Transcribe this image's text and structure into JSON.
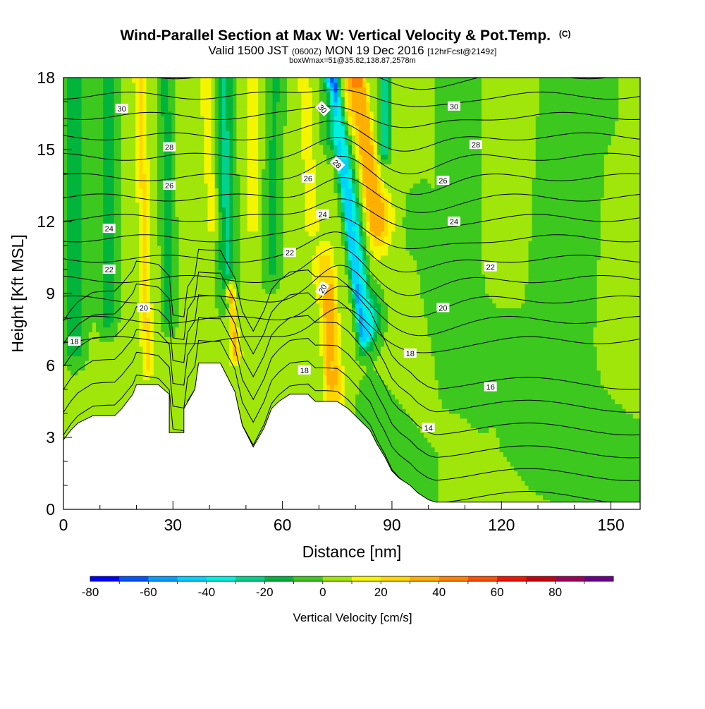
{
  "chart_data": {
    "type": "heatmap",
    "title": "Wind-Parallel Section at Max W: Vertical Velocity & Pot.Temp.",
    "title_mark": "(C)",
    "subtitle_parts": {
      "valid": "Valid 1500 JST",
      "utc": "(0600Z)",
      "date": "MON 19 Dec 2016",
      "fcst": "[12hrFcst@2149z]"
    },
    "info": "boxWmax=51@35.82,138.87,2578m",
    "xlabel": "Distance [nm]",
    "ylabel": "Height [Kft MSL]",
    "xlim": [
      0,
      158
    ],
    "ylim": [
      0,
      18
    ],
    "x_ticks": [
      0,
      30,
      60,
      90,
      120,
      150
    ],
    "x_tick_labels": [
      "0",
      "30",
      "60",
      "90",
      "120",
      "150"
    ],
    "y_ticks": [
      0,
      3,
      6,
      9,
      12,
      15,
      18
    ],
    "y_tick_labels": [
      "0",
      "3",
      "6",
      "9",
      "12",
      "15",
      "18"
    ],
    "colorbar": {
      "label": "Vertical Velocity [cm/s]",
      "levels": [
        -80,
        -70,
        -60,
        -50,
        -40,
        -30,
        -20,
        -10,
        0,
        10,
        20,
        30,
        40,
        50,
        60,
        70,
        80,
        90
      ],
      "colors": [
        "#0000ff",
        "#0055ff",
        "#00a0ff",
        "#00d2ff",
        "#00f0e0",
        "#00d28c",
        "#00b43c",
        "#3cc81e",
        "#a0e60a",
        "#f5f500",
        "#ffd700",
        "#ffaf00",
        "#ff8200",
        "#ff5000",
        "#f01400",
        "#c8000f",
        "#a0005a",
        "#6e008c"
      ],
      "tick_values": [
        -80,
        -60,
        -40,
        -20,
        0,
        20,
        40,
        60,
        80
      ],
      "tick_labels": [
        "-80",
        "-60",
        "-40",
        "-20",
        "0",
        "20",
        "40",
        "60",
        "80"
      ]
    },
    "field": {
      "background_value": 3,
      "features": [
        {
          "x0": 74,
          "y0": 18,
          "x1": 82,
          "y1": 7.5,
          "w": 2.2,
          "value": -75
        },
        {
          "x0": 75.5,
          "y0": 16,
          "x1": 83,
          "y1": 8,
          "w": 3.5,
          "value": -40
        },
        {
          "x0": 80.5,
          "y0": 18,
          "x1": 85,
          "y1": 12.5,
          "w": 2.5,
          "value": 68
        },
        {
          "x0": 81,
          "y0": 17,
          "x1": 86,
          "y1": 12,
          "w": 4,
          "value": 35
        },
        {
          "x0": 72.5,
          "y0": 9,
          "x1": 73.5,
          "y1": 5.5,
          "w": 1.8,
          "value": 58
        },
        {
          "x0": 72,
          "y0": 10,
          "x1": 74,
          "y1": 5,
          "w": 3.2,
          "value": 30
        },
        {
          "x0": 3,
          "y0": 18,
          "x1": 3,
          "y1": 7,
          "w": 3,
          "value": -20
        },
        {
          "x0": 12,
          "y0": 18,
          "x1": 12,
          "y1": 8,
          "w": 2.5,
          "value": -15
        },
        {
          "x0": 21,
          "y0": 18,
          "x1": 23,
          "y1": 6,
          "w": 1.8,
          "value": 22
        },
        {
          "x0": 28,
          "y0": 18,
          "x1": 29,
          "y1": 8,
          "w": 2,
          "value": -14
        },
        {
          "x0": 39,
          "y0": 18,
          "x1": 41,
          "y1": 12,
          "w": 2.5,
          "value": 16
        },
        {
          "x0": 44,
          "y0": 18,
          "x1": 45,
          "y1": 9,
          "w": 2.5,
          "value": -22
        },
        {
          "x0": 46,
          "y0": 9,
          "x1": 47,
          "y1": 6.5,
          "w": 1.6,
          "value": 32
        },
        {
          "x0": 52,
          "y0": 18,
          "x1": 52,
          "y1": 12,
          "w": 1.8,
          "value": 18
        },
        {
          "x0": 58,
          "y0": 18,
          "x1": 57,
          "y1": 10,
          "w": 2.5,
          "value": -12
        },
        {
          "x0": 66,
          "y0": 18,
          "x1": 68,
          "y1": 12,
          "w": 2.5,
          "value": 16
        },
        {
          "x0": 88,
          "y0": 18,
          "x1": 88,
          "y1": 15,
          "w": 1.5,
          "value": -28
        },
        {
          "x0": 98,
          "y0": 12,
          "x1": 105,
          "y1": 6,
          "w": 5,
          "value": -6
        },
        {
          "x0": 108,
          "y0": 18,
          "x1": 108,
          "y1": 10,
          "w": 6,
          "value": -6
        },
        {
          "x0": 140,
          "y0": 18,
          "x1": 135,
          "y1": 5,
          "w": 12,
          "value": -7
        },
        {
          "x0": 115,
          "y0": 6,
          "x1": 158,
          "y1": 1,
          "w": 8,
          "value": -6
        },
        {
          "x0": 85,
          "y0": 4,
          "x1": 100,
          "y1": 1,
          "w": 5,
          "value": -7
        },
        {
          "x0": 156,
          "y0": 18,
          "x1": 156,
          "y1": 10,
          "w": 2,
          "value": 8
        },
        {
          "x0": 118,
          "y0": 3,
          "x1": 120,
          "y1": 0.2,
          "w": 1,
          "value": 9
        },
        {
          "x0": 104,
          "y0": 3,
          "x1": 104,
          "y1": 0.5,
          "w": 1,
          "value": 9
        }
      ]
    },
    "terrain": [
      [
        0,
        2.9
      ],
      [
        2,
        3.3
      ],
      [
        4,
        3.6
      ],
      [
        8,
        3.9
      ],
      [
        14,
        3.9
      ],
      [
        16,
        4.2
      ],
      [
        19,
        4.8
      ],
      [
        20,
        5.2
      ],
      [
        26,
        5.2
      ],
      [
        29,
        4.8
      ],
      [
        29,
        3.2
      ],
      [
        33,
        3.2
      ],
      [
        33,
        4.2
      ],
      [
        36,
        5.0
      ],
      [
        37,
        6.1
      ],
      [
        43,
        6.1
      ],
      [
        45,
        5.5
      ],
      [
        47,
        4.9
      ],
      [
        49,
        3.5
      ],
      [
        52,
        2.6
      ],
      [
        55,
        3.4
      ],
      [
        57,
        4.2
      ],
      [
        59,
        4.5
      ],
      [
        62,
        4.8
      ],
      [
        67,
        4.8
      ],
      [
        69,
        4.5
      ],
      [
        75,
        4.5
      ],
      [
        78,
        4.2
      ],
      [
        80,
        3.9
      ],
      [
        82,
        3.6
      ],
      [
        84,
        3.3
      ],
      [
        86,
        2.7
      ],
      [
        88,
        2.2
      ],
      [
        90,
        1.6
      ],
      [
        92,
        1.3
      ],
      [
        95,
        1.0
      ],
      [
        97,
        0.7
      ],
      [
        100,
        0.4
      ],
      [
        102,
        0.3
      ],
      [
        158,
        0.3
      ]
    ],
    "theta_levels": [
      12,
      13,
      14,
      15,
      16,
      17,
      18,
      19,
      20,
      21,
      22,
      23,
      24,
      25,
      26,
      27,
      28,
      29,
      30,
      31
    ],
    "contour_labels": [
      {
        "text": "30",
        "x": 16,
        "y": 16.7
      },
      {
        "text": "28",
        "x": 29,
        "y": 15.1
      },
      {
        "text": "26",
        "x": 29,
        "y": 13.5
      },
      {
        "text": "24",
        "x": 12.5,
        "y": 11.7
      },
      {
        "text": "22",
        "x": 12.5,
        "y": 10.0
      },
      {
        "text": "20",
        "x": 22,
        "y": 8.4
      },
      {
        "text": "18",
        "x": 3,
        "y": 7.0
      },
      {
        "text": "30",
        "x": 71,
        "y": 16.7,
        "rot": 45
      },
      {
        "text": "28",
        "x": 75,
        "y": 14.4,
        "rot": 45
      },
      {
        "text": "26",
        "x": 67,
        "y": 13.8
      },
      {
        "text": "24",
        "x": 71,
        "y": 12.3
      },
      {
        "text": "22",
        "x": 62,
        "y": 10.7
      },
      {
        "text": "20",
        "x": 71,
        "y": 9.2,
        "rot": -60
      },
      {
        "text": "18",
        "x": 66,
        "y": 5.8
      },
      {
        "text": "30",
        "x": 107,
        "y": 16.8
      },
      {
        "text": "28",
        "x": 113,
        "y": 15.2
      },
      {
        "text": "26",
        "x": 104,
        "y": 13.7
      },
      {
        "text": "24",
        "x": 107,
        "y": 12.0
      },
      {
        "text": "22",
        "x": 117,
        "y": 10.1
      },
      {
        "text": "20",
        "x": 104,
        "y": 8.4
      },
      {
        "text": "18",
        "x": 95,
        "y": 6.5
      },
      {
        "text": "16",
        "x": 117,
        "y": 5.1
      },
      {
        "text": "14",
        "x": 100,
        "y": 3.4
      }
    ]
  }
}
